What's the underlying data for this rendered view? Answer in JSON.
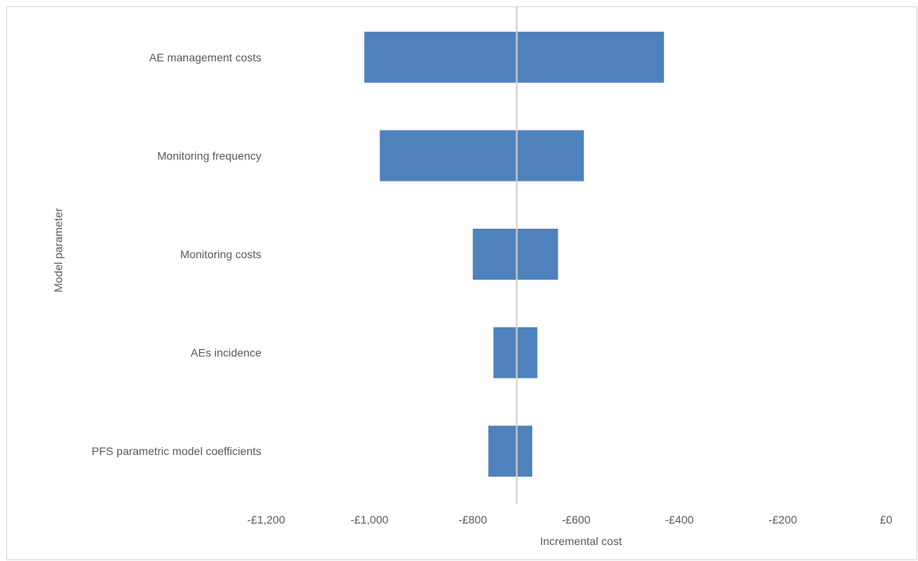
{
  "chart_data": {
    "type": "bar",
    "orientation": "horizontal",
    "subtype": "tornado",
    "xlabel": "Incremental cost",
    "ylabel": "Model parameter",
    "xlim": [
      -1200,
      0
    ],
    "xticks": [
      -1200,
      -1000,
      -800,
      -600,
      -400,
      -200,
      0
    ],
    "xtick_labels": [
      "-£1,200",
      "-£1,000",
      "-£800",
      "-£600",
      "-£400",
      "-£200",
      "£0"
    ],
    "base_value": -715,
    "categories": [
      "AE management costs",
      "Monitoring frequency",
      "Monitoring costs",
      "AEs incidence",
      "PFS parametric model coefficients"
    ],
    "ranges": [
      {
        "low": -1010,
        "high": -430
      },
      {
        "low": -980,
        "high": -585
      },
      {
        "low": -800,
        "high": -635
      },
      {
        "low": -760,
        "high": -675
      },
      {
        "low": -770,
        "high": -685
      }
    ],
    "grid": false,
    "legend": "none",
    "colors": {
      "bar": "#4f81bd",
      "baseline": "#d0d0d0",
      "text": "#595959"
    }
  }
}
